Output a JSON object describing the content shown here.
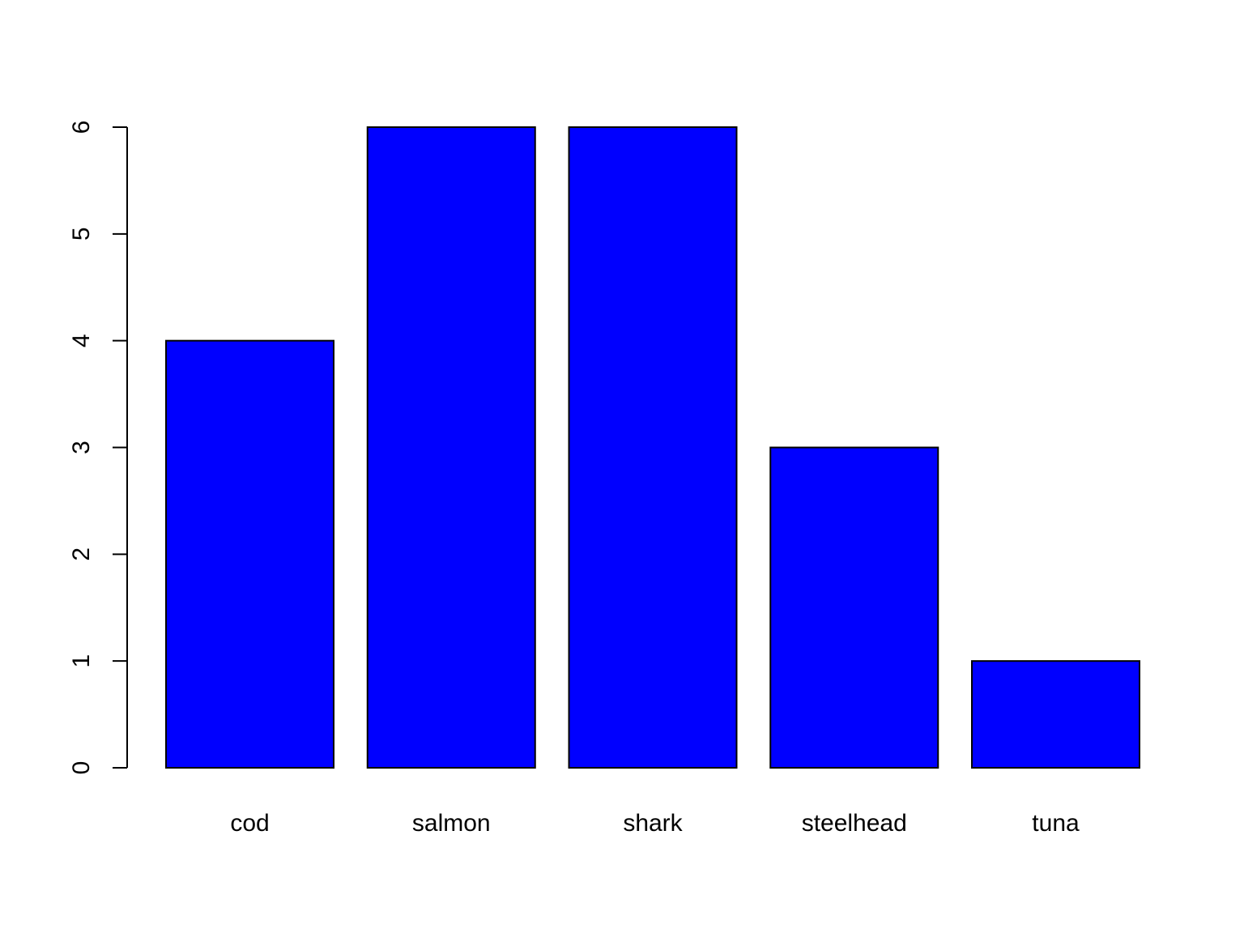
{
  "chart_data": {
    "type": "bar",
    "categories": [
      "cod",
      "salmon",
      "shark",
      "steelhead",
      "tuna"
    ],
    "values": [
      4,
      6,
      6,
      3,
      1
    ],
    "title": "",
    "xlabel": "",
    "ylabel": "",
    "ylim": [
      0,
      6
    ],
    "yticks": [
      "0",
      "1",
      "2",
      "3",
      "4",
      "5",
      "6"
    ],
    "grid": false,
    "legend": "none",
    "bar_color": "#0000ff",
    "border_color": "#000000"
  }
}
